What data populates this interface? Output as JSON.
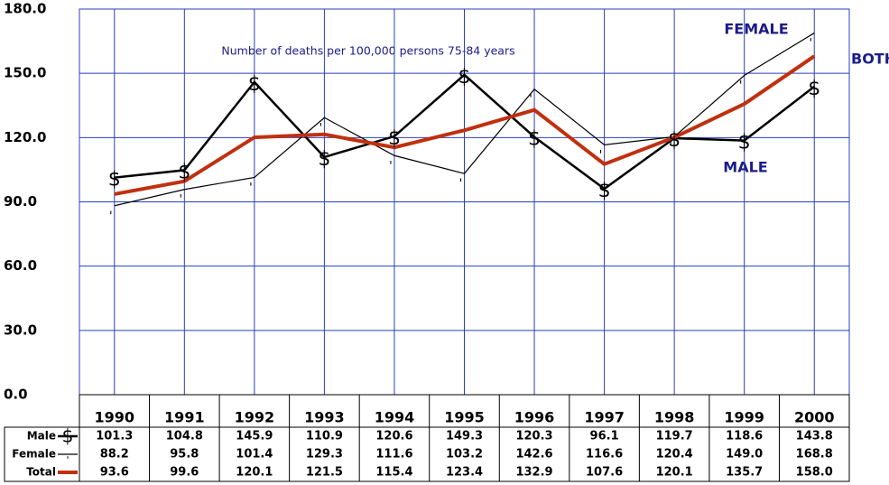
{
  "chart_data": {
    "type": "line",
    "annotations": [
      "Number of deaths per 100,000 persons 75-84 years",
      "FEMALE",
      "BOTH",
      "MALE"
    ],
    "categories": [
      "1990",
      "1991",
      "1992",
      "1993",
      "1994",
      "1995",
      "1996",
      "1997",
      "1998",
      "1999",
      "2000"
    ],
    "series": [
      {
        "name": "Male",
        "color": "#000000",
        "marker": "$",
        "values": [
          101.3,
          104.8,
          145.9,
          110.9,
          120.6,
          149.3,
          120.3,
          96.1,
          119.7,
          118.6,
          143.8
        ],
        "value_labels": [
          "101.3",
          "104.8",
          "145.9",
          "110.9",
          "120.6",
          "149.3",
          "120.3",
          "96.1",
          "119.7",
          "118.6",
          "143.8"
        ]
      },
      {
        "name": "Female",
        "color": "#000000",
        "marker": "'",
        "values": [
          88.2,
          95.8,
          101.4,
          129.3,
          111.6,
          103.2,
          142.6,
          116.6,
          120.4,
          149.0,
          168.8
        ],
        "value_labels": [
          "88.2",
          "95.8",
          "101.4",
          "129.3",
          "111.6",
          "103.2",
          "142.6",
          "116.6",
          "120.4",
          "149.0",
          "168.8"
        ]
      },
      {
        "name": "Total",
        "color": "#c0300f",
        "values": [
          93.6,
          99.6,
          120.1,
          121.5,
          115.4,
          123.4,
          132.9,
          107.6,
          120.1,
          135.7,
          158.0
        ],
        "value_labels": [
          "93.6",
          "99.6",
          "120.1",
          "121.5",
          "115.4",
          "123.4",
          "132.9",
          "107.6",
          "120.1",
          "135.7",
          "158.0"
        ]
      }
    ],
    "ylim": [
      0,
      180
    ],
    "yticks": [
      {
        "value": 0,
        "label": "0.0"
      },
      {
        "value": 30,
        "label": "30.0"
      },
      {
        "value": 60,
        "label": "60.0"
      },
      {
        "value": 90,
        "label": "90.0"
      },
      {
        "value": 120,
        "label": "120.0"
      },
      {
        "value": 150,
        "label": "150.0"
      },
      {
        "value": 180,
        "label": "180.0"
      }
    ],
    "grid": true,
    "grid_color": "#2a3fbf"
  }
}
